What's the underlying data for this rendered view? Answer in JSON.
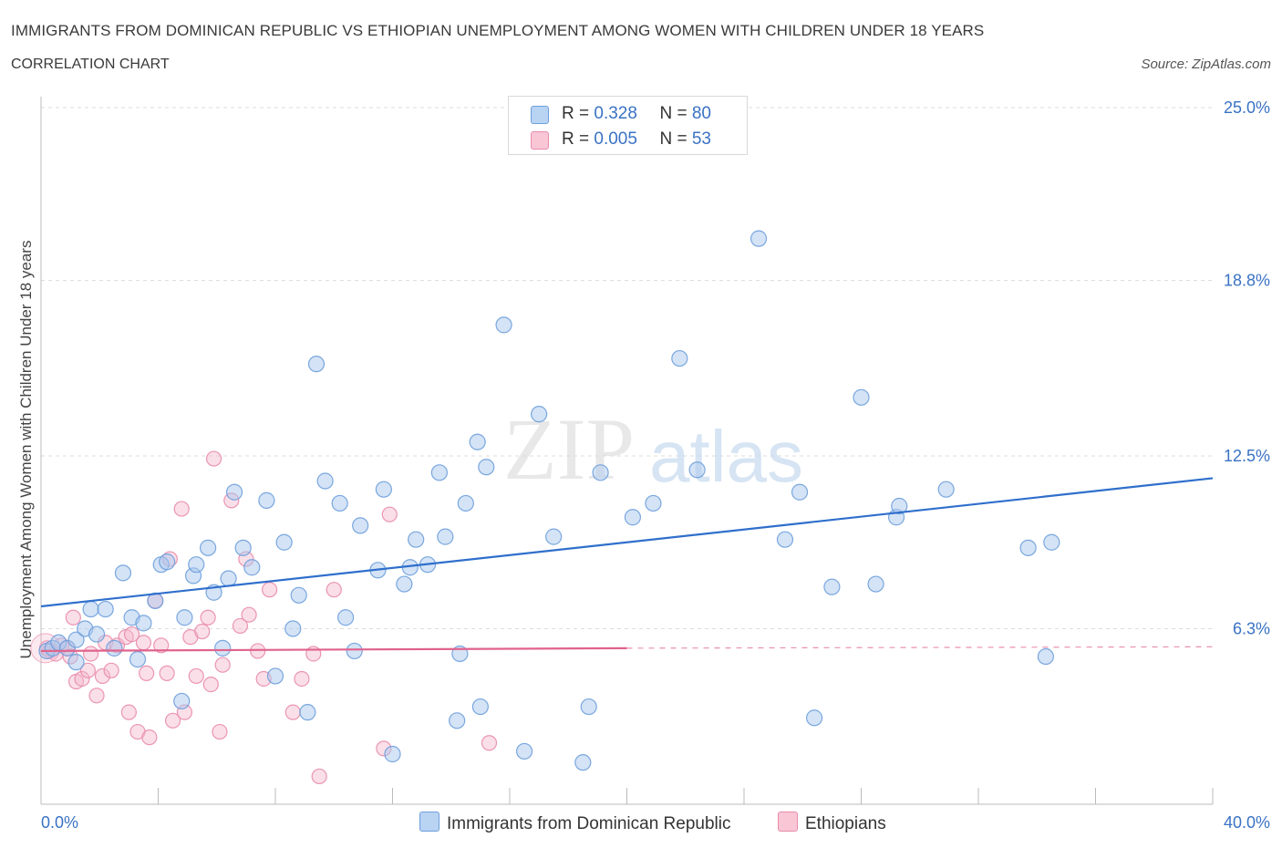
{
  "header": {
    "title": "IMMIGRANTS FROM DOMINICAN REPUBLIC VS ETHIOPIAN UNEMPLOYMENT AMONG WOMEN WITH CHILDREN UNDER 18 YEARS",
    "subtitle": "CORRELATION CHART",
    "source": "Source: ZipAtlas.com"
  },
  "watermark": {
    "zip": "ZIP",
    "atlas": "atlas"
  },
  "legend": {
    "series1": {
      "r_label": "R = ",
      "r_value": "0.328",
      "n_label": "N = ",
      "n_value": "80"
    },
    "series2": {
      "r_label": "R = ",
      "r_value": "0.005",
      "n_label": "N = ",
      "n_value": "53"
    }
  },
  "colors": {
    "blue_fill": "#a9c8ee",
    "blue_stroke": "#6d9fdc",
    "blue_line": "#2f6fcc",
    "pink_fill": "#f5b7cb",
    "pink_stroke": "#e98bab",
    "pink_line": "#e0628c",
    "grid": "#dddddd",
    "tick_label": "#3a72c4"
  },
  "chart_data": {
    "type": "scatter",
    "xlabel": "",
    "ylabel": "Unemployment Among Women with Children Under 18 years",
    "xlim": [
      0,
      40
    ],
    "ylim": [
      0,
      25
    ],
    "x_tick_labels": [
      "0.0%",
      "40.0%"
    ],
    "y_ticks": [
      6.3,
      12.5,
      18.8,
      25.0
    ],
    "y_tick_labels": [
      "6.3%",
      "12.5%",
      "18.8%",
      "25.0%"
    ],
    "grid": true,
    "legend_position": "top-center",
    "series": [
      {
        "name": "Immigrants from Dominican Republic",
        "color": "#6d9fdc",
        "trend": {
          "x": [
            0,
            40
          ],
          "y": [
            7.1,
            11.7
          ]
        },
        "points": [
          [
            0.2,
            5.5
          ],
          [
            0.4,
            5.6
          ],
          [
            0.6,
            5.8
          ],
          [
            0.9,
            5.6
          ],
          [
            1.2,
            5.9
          ],
          [
            1.2,
            5.1
          ],
          [
            1.5,
            6.3
          ],
          [
            1.7,
            7.0
          ],
          [
            1.9,
            6.1
          ],
          [
            2.2,
            7.0
          ],
          [
            2.5,
            5.6
          ],
          [
            2.8,
            8.3
          ],
          [
            3.1,
            6.7
          ],
          [
            3.3,
            5.2
          ],
          [
            3.5,
            6.5
          ],
          [
            3.9,
            7.3
          ],
          [
            4.1,
            8.6
          ],
          [
            4.3,
            8.7
          ],
          [
            4.8,
            3.7
          ],
          [
            4.9,
            6.7
          ],
          [
            5.2,
            8.2
          ],
          [
            5.3,
            8.6
          ],
          [
            5.7,
            9.2
          ],
          [
            5.9,
            7.6
          ],
          [
            6.2,
            5.6
          ],
          [
            6.4,
            8.1
          ],
          [
            6.6,
            11.2
          ],
          [
            6.9,
            9.2
          ],
          [
            7.2,
            8.5
          ],
          [
            7.7,
            10.9
          ],
          [
            8.0,
            4.6
          ],
          [
            8.3,
            9.4
          ],
          [
            8.6,
            6.3
          ],
          [
            8.8,
            7.5
          ],
          [
            9.1,
            3.3
          ],
          [
            9.4,
            15.8
          ],
          [
            9.7,
            11.6
          ],
          [
            10.2,
            10.8
          ],
          [
            10.4,
            6.7
          ],
          [
            10.7,
            5.5
          ],
          [
            10.9,
            10.0
          ],
          [
            11.5,
            8.4
          ],
          [
            11.7,
            11.3
          ],
          [
            12.0,
            1.8
          ],
          [
            12.4,
            7.9
          ],
          [
            12.6,
            8.5
          ],
          [
            12.8,
            9.5
          ],
          [
            13.2,
            8.6
          ],
          [
            13.6,
            11.9
          ],
          [
            13.8,
            9.6
          ],
          [
            14.3,
            5.4
          ],
          [
            14.2,
            3.0
          ],
          [
            14.5,
            10.8
          ],
          [
            14.9,
            13.0
          ],
          [
            15.0,
            3.5
          ],
          [
            15.2,
            12.1
          ],
          [
            15.8,
            17.2
          ],
          [
            16.5,
            1.9
          ],
          [
            17.0,
            14.0
          ],
          [
            17.5,
            9.6
          ],
          [
            18.5,
            1.5
          ],
          [
            18.7,
            3.5
          ],
          [
            19.1,
            11.9
          ],
          [
            20.2,
            10.3
          ],
          [
            20.9,
            10.8
          ],
          [
            21.8,
            16.0
          ],
          [
            22.4,
            12.0
          ],
          [
            24.5,
            20.3
          ],
          [
            25.4,
            9.5
          ],
          [
            25.9,
            11.2
          ],
          [
            26.4,
            3.1
          ],
          [
            27.0,
            7.8
          ],
          [
            28.0,
            14.6
          ],
          [
            28.5,
            7.9
          ],
          [
            29.2,
            10.3
          ],
          [
            29.3,
            10.7
          ],
          [
            30.9,
            11.3
          ],
          [
            33.7,
            9.2
          ],
          [
            34.3,
            5.3
          ],
          [
            34.5,
            9.4
          ]
        ]
      },
      {
        "name": "Ethiopians",
        "color": "#e98bab",
        "trend": {
          "x": [
            0,
            20
          ],
          "y": [
            5.5,
            5.6
          ]
        },
        "points": [
          [
            0.2,
            5.6
          ],
          [
            0.3,
            5.5
          ],
          [
            0.5,
            5.4
          ],
          [
            0.7,
            5.7
          ],
          [
            0.9,
            5.6
          ],
          [
            1.0,
            5.3
          ],
          [
            1.1,
            6.7
          ],
          [
            1.2,
            4.4
          ],
          [
            1.4,
            4.5
          ],
          [
            1.6,
            4.8
          ],
          [
            1.7,
            5.4
          ],
          [
            1.9,
            3.9
          ],
          [
            2.1,
            4.6
          ],
          [
            2.2,
            5.8
          ],
          [
            2.4,
            4.8
          ],
          [
            2.6,
            5.7
          ],
          [
            2.9,
            6.0
          ],
          [
            3.0,
            3.3
          ],
          [
            3.1,
            6.1
          ],
          [
            3.3,
            2.6
          ],
          [
            3.5,
            5.8
          ],
          [
            3.6,
            4.7
          ],
          [
            3.7,
            2.4
          ],
          [
            3.9,
            7.3
          ],
          [
            4.1,
            5.7
          ],
          [
            4.3,
            4.7
          ],
          [
            4.4,
            8.8
          ],
          [
            4.5,
            3.0
          ],
          [
            4.8,
            10.6
          ],
          [
            4.9,
            3.3
          ],
          [
            5.1,
            6.0
          ],
          [
            5.3,
            4.6
          ],
          [
            5.5,
            6.2
          ],
          [
            5.7,
            6.7
          ],
          [
            5.8,
            4.3
          ],
          [
            5.9,
            12.4
          ],
          [
            6.1,
            2.6
          ],
          [
            6.2,
            5.0
          ],
          [
            6.5,
            10.9
          ],
          [
            6.8,
            6.4
          ],
          [
            7.0,
            8.8
          ],
          [
            7.1,
            6.8
          ],
          [
            7.4,
            5.5
          ],
          [
            7.6,
            4.5
          ],
          [
            7.8,
            7.7
          ],
          [
            8.6,
            3.3
          ],
          [
            8.9,
            4.5
          ],
          [
            9.3,
            5.4
          ],
          [
            9.5,
            1.0
          ],
          [
            10.0,
            7.7
          ],
          [
            11.7,
            2.0
          ],
          [
            11.9,
            10.4
          ],
          [
            15.3,
            2.2
          ]
        ]
      }
    ]
  },
  "bottom_legend": {
    "series1": "Immigrants from Dominican Republic",
    "series2": "Ethiopians"
  }
}
